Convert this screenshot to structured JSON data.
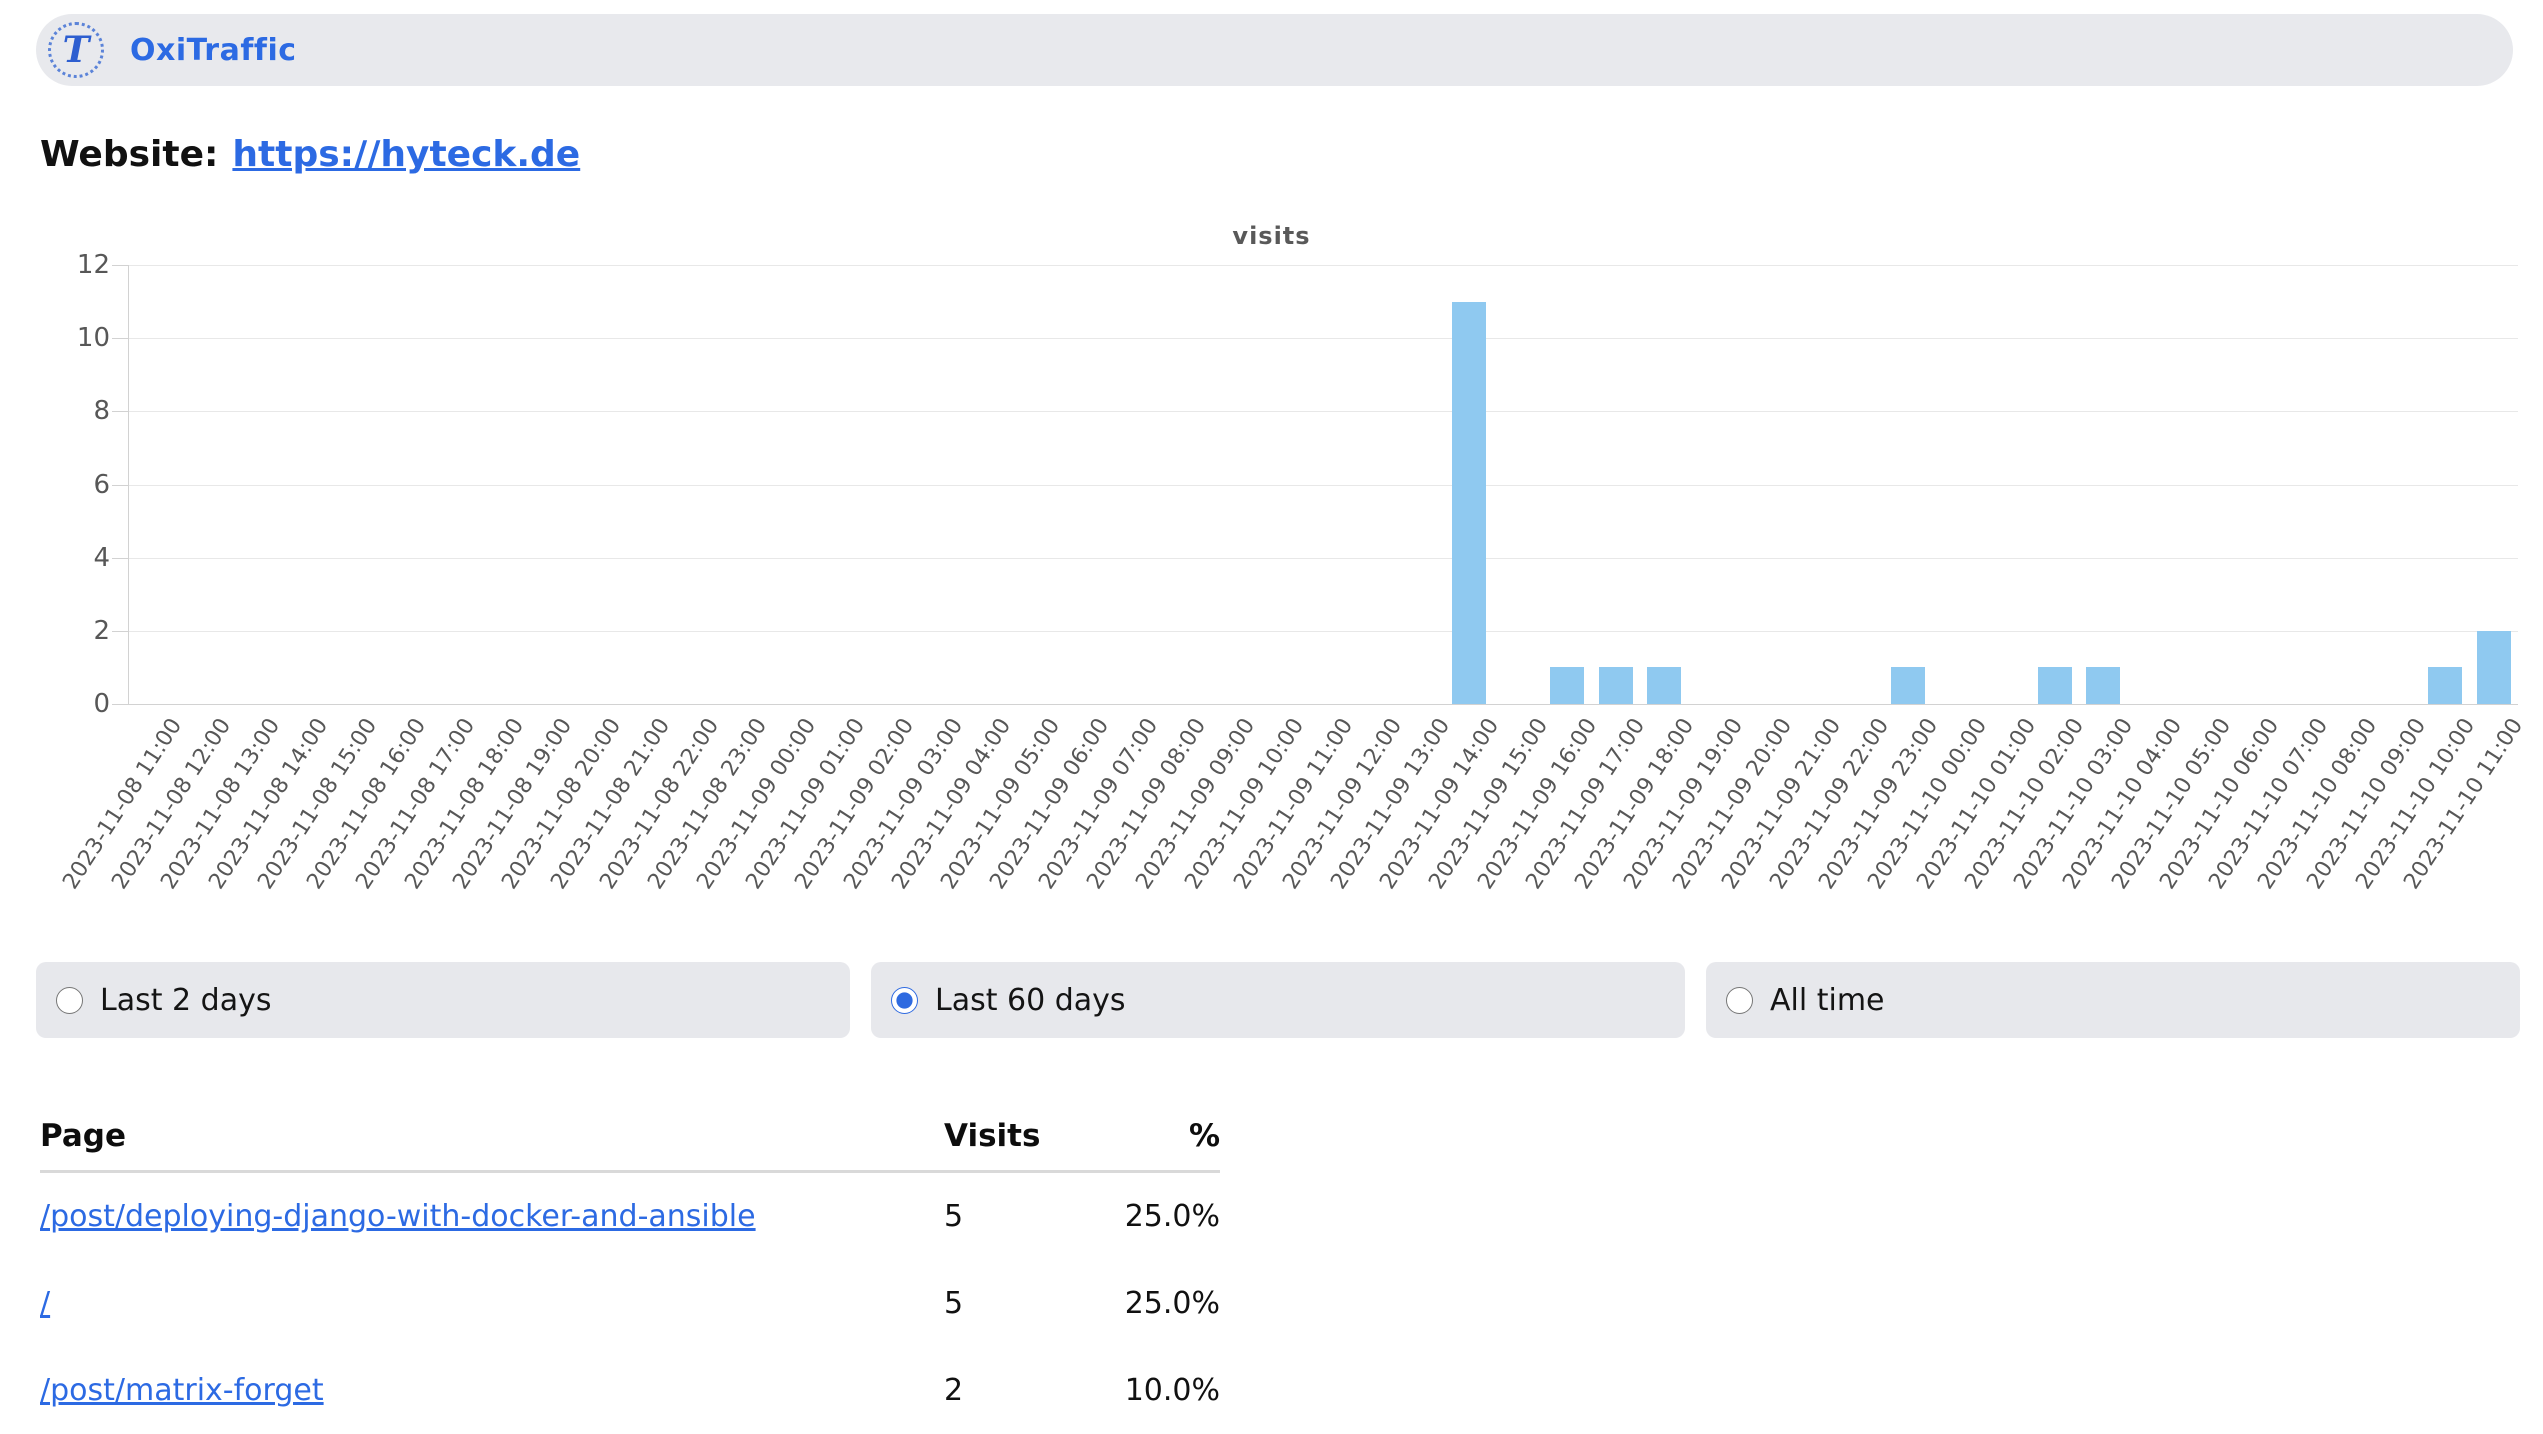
{
  "header": {
    "app_name": "OxiTraffic",
    "logo_glyph": "T"
  },
  "website": {
    "label": "Website:",
    "url": "https://hyteck.de"
  },
  "chart_data": {
    "type": "bar",
    "title": "visits",
    "xlabel": "",
    "ylabel": "",
    "ylim": [
      0,
      12
    ],
    "ytick_step": 2,
    "grid": true,
    "bar_color": "#8fc9f0",
    "categories": [
      "2023-11-08 11:00",
      "2023-11-08 12:00",
      "2023-11-08 13:00",
      "2023-11-08 14:00",
      "2023-11-08 15:00",
      "2023-11-08 16:00",
      "2023-11-08 17:00",
      "2023-11-08 18:00",
      "2023-11-08 19:00",
      "2023-11-08 20:00",
      "2023-11-08 21:00",
      "2023-11-08 22:00",
      "2023-11-08 23:00",
      "2023-11-09 00:00",
      "2023-11-09 01:00",
      "2023-11-09 02:00",
      "2023-11-09 03:00",
      "2023-11-09 04:00",
      "2023-11-09 05:00",
      "2023-11-09 06:00",
      "2023-11-09 07:00",
      "2023-11-09 08:00",
      "2023-11-09 09:00",
      "2023-11-09 10:00",
      "2023-11-09 11:00",
      "2023-11-09 12:00",
      "2023-11-09 13:00",
      "2023-11-09 14:00",
      "2023-11-09 15:00",
      "2023-11-09 16:00",
      "2023-11-09 17:00",
      "2023-11-09 18:00",
      "2023-11-09 19:00",
      "2023-11-09 20:00",
      "2023-11-09 21:00",
      "2023-11-09 22:00",
      "2023-11-09 23:00",
      "2023-11-10 00:00",
      "2023-11-10 01:00",
      "2023-11-10 02:00",
      "2023-11-10 03:00",
      "2023-11-10 04:00",
      "2023-11-10 05:00",
      "2023-11-10 06:00",
      "2023-11-10 07:00",
      "2023-11-10 08:00",
      "2023-11-10 09:00",
      "2023-11-10 10:00",
      "2023-11-10 11:00"
    ],
    "values": [
      0,
      0,
      0,
      0,
      0,
      0,
      0,
      0,
      0,
      0,
      0,
      0,
      0,
      0,
      0,
      0,
      0,
      0,
      0,
      0,
      0,
      0,
      0,
      0,
      0,
      0,
      0,
      11,
      0,
      1,
      1,
      1,
      0,
      0,
      0,
      0,
      1,
      0,
      0,
      1,
      1,
      0,
      0,
      0,
      0,
      0,
      0,
      1,
      2
    ]
  },
  "range_selector": {
    "options": [
      {
        "label": "Last 2 days",
        "selected": false
      },
      {
        "label": "Last 60 days",
        "selected": true
      },
      {
        "label": "All time",
        "selected": false
      }
    ]
  },
  "table": {
    "columns": [
      "Page",
      "Visits",
      "%"
    ],
    "rows": [
      {
        "page": "/post/deploying-django-with-docker-and-ansible",
        "visits": "5",
        "percent": "25.0%"
      },
      {
        "page": "/",
        "visits": "5",
        "percent": "25.0%"
      },
      {
        "page": "/post/matrix-forget",
        "visits": "2",
        "percent": "10.0%"
      }
    ]
  },
  "colors": {
    "accent_blue": "#2c6ae3",
    "bar": "#8fc9f0",
    "pill_bg": "#e7e8ec",
    "grid": "#e8e8e8",
    "axis_text": "#575757"
  }
}
